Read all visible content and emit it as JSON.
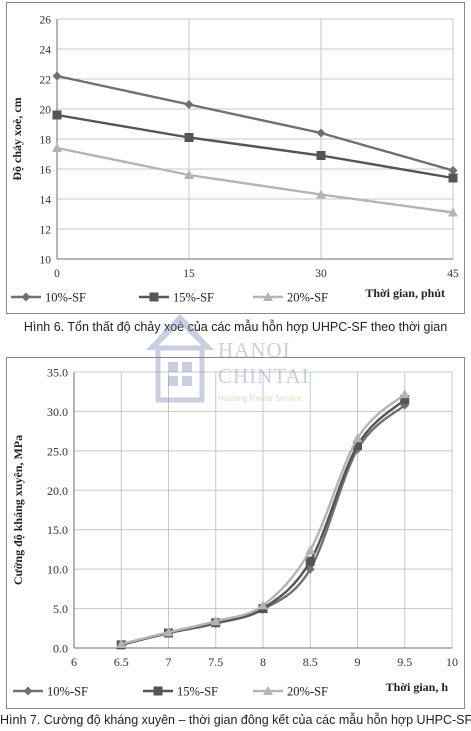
{
  "chart_data": [
    {
      "type": "line",
      "title": "",
      "xlabel": "Thời gian, phút",
      "ylabel": "Độ chảy xoè, cm",
      "x": [
        0,
        15,
        30,
        45
      ],
      "x_ticks": [
        "0",
        "15",
        "30",
        "45"
      ],
      "y_ticks": [
        "10",
        "12",
        "14",
        "16",
        "18",
        "20",
        "22",
        "24",
        "26"
      ],
      "xlim": [
        0,
        45
      ],
      "ylim": [
        10,
        26
      ],
      "grid": true,
      "legend_position": "bottom",
      "series": [
        {
          "name": "10%-SF",
          "values": [
            22.2,
            20.3,
            18.4,
            15.9
          ],
          "color": "#707070",
          "marker": "diamond"
        },
        {
          "name": "15%-SF",
          "values": [
            19.6,
            18.1,
            16.9,
            15.4
          ],
          "color": "#555555",
          "marker": "square"
        },
        {
          "name": "20%-SF",
          "values": [
            17.4,
            15.6,
            14.3,
            13.1
          ],
          "color": "#b4b4b4",
          "marker": "triangle"
        }
      ]
    },
    {
      "type": "line",
      "title": "",
      "xlabel": "Thời gian, h",
      "ylabel": "Cường độ kháng xuyên, MPa",
      "x": [
        6.5,
        7,
        7.5,
        8,
        8.5,
        9,
        9.5
      ],
      "x_ticks": [
        "6",
        "6.5",
        "7",
        "7.5",
        "8",
        "8.5",
        "9",
        "9.5",
        "10"
      ],
      "y_ticks": [
        "0.0",
        "5.0",
        "10.0",
        "15.0",
        "20.0",
        "25.0",
        "30.0",
        "35.0"
      ],
      "xlim": [
        6,
        10
      ],
      "ylim": [
        0,
        35
      ],
      "grid": true,
      "legend_position": "bottom",
      "series": [
        {
          "name": "10%-SF",
          "values": [
            0.4,
            1.9,
            3.1,
            4.9,
            10.0,
            25.2,
            30.8
          ],
          "color": "#707070",
          "marker": "diamond"
        },
        {
          "name": "15%-SF",
          "values": [
            0.4,
            1.9,
            3.2,
            5.0,
            11.0,
            25.7,
            31.5
          ],
          "color": "#555555",
          "marker": "square"
        },
        {
          "name": "20%-SF",
          "values": [
            0.5,
            2.0,
            3.4,
            5.4,
            12.4,
            26.6,
            32.2
          ],
          "color": "#b4b4b4",
          "marker": "triangle"
        }
      ]
    }
  ],
  "captions": {
    "figure6": "Hình 6. Tổn thất độ chảy xoè của các mẫu hỗn hợp UHPC-SF theo thời gian",
    "figure7": "Hình 7. Cường độ kháng xuyên – thời gian đông kết của các mẫu hỗn hợp UHPC-SF"
  },
  "watermark": {
    "line1": "HANOI",
    "line2": "CHINTAI",
    "line3": "Housing Rental Service",
    "icon": "house-icon"
  }
}
